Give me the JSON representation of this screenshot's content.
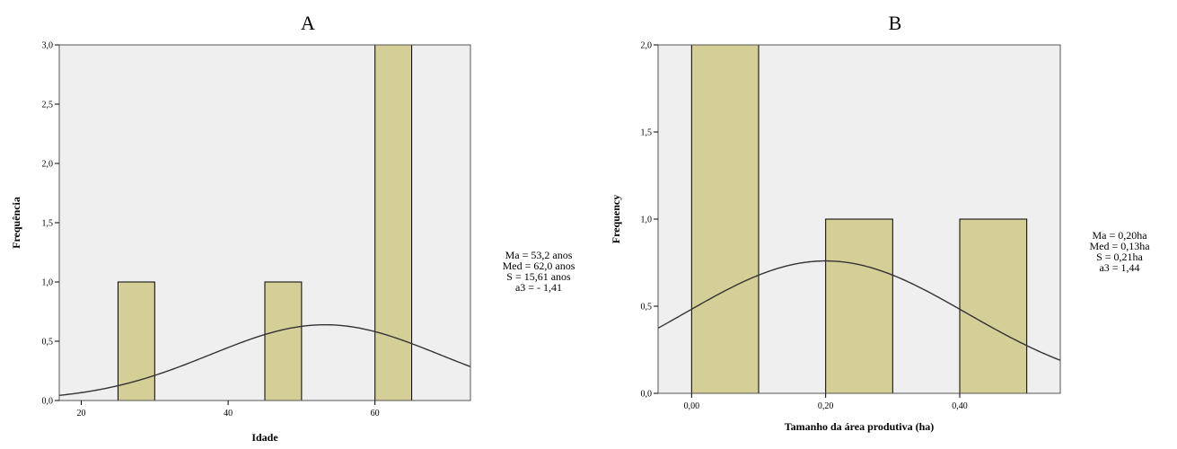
{
  "chart_data": [
    {
      "type": "bar",
      "panel_label": "A",
      "xlabel": "Idade",
      "ylabel": "Frequência",
      "xlim": [
        17,
        73
      ],
      "ylim": [
        0,
        3.0
      ],
      "x_ticks": [
        20,
        40,
        60
      ],
      "x_tick_labels": [
        "20",
        "40",
        "60"
      ],
      "y_ticks": [
        0,
        0.5,
        1.0,
        1.5,
        2.0,
        2.5,
        3.0
      ],
      "y_tick_labels": [
        "0,0",
        "0,5",
        "1,0",
        "1,5",
        "2,0",
        "2,5",
        "3,0"
      ],
      "bins": [
        {
          "x0": 25,
          "x1": 30,
          "value": 1
        },
        {
          "x0": 45,
          "x1": 50,
          "value": 1
        },
        {
          "x0": 60,
          "x1": 65,
          "value": 3
        }
      ],
      "normal_curve": {
        "mean": 53.2,
        "sd": 15.61,
        "scale": 25
      },
      "stats": [
        "Ma = 53,2 anos",
        "Med = 62,0 anos",
        "S = 15,61 anos",
        "a3 = - 1,41"
      ],
      "colors": {
        "bar": "#d4cf96",
        "background": "#efefef"
      }
    },
    {
      "type": "bar",
      "panel_label": "B",
      "xlabel": "Tamanho da área produtiva (ha)",
      "ylabel": "Frequency",
      "xlim": [
        -0.05,
        0.55
      ],
      "ylim": [
        0,
        2.0
      ],
      "x_ticks": [
        0,
        0.2,
        0.4
      ],
      "x_tick_labels": [
        "0,00",
        "0,20",
        "0,40"
      ],
      "y_ticks": [
        0,
        0.5,
        1.0,
        1.5,
        2.0
      ],
      "y_tick_labels": [
        "0,0",
        "0,5",
        "1,0",
        "1,5",
        "2,0"
      ],
      "bins": [
        {
          "x0": 0.0,
          "x1": 0.1,
          "value": 2
        },
        {
          "x0": 0.2,
          "x1": 0.3,
          "value": 1
        },
        {
          "x0": 0.4,
          "x1": 0.5,
          "value": 1
        }
      ],
      "normal_curve": {
        "mean": 0.2,
        "sd": 0.21,
        "scale": 0.4
      },
      "stats": [
        "Ma = 0,20ha",
        "Med = 0,13ha",
        "S = 0,21ha",
        "a3 = 1,44"
      ],
      "colors": {
        "bar": "#d4cf96",
        "background": "#efefef"
      }
    }
  ]
}
